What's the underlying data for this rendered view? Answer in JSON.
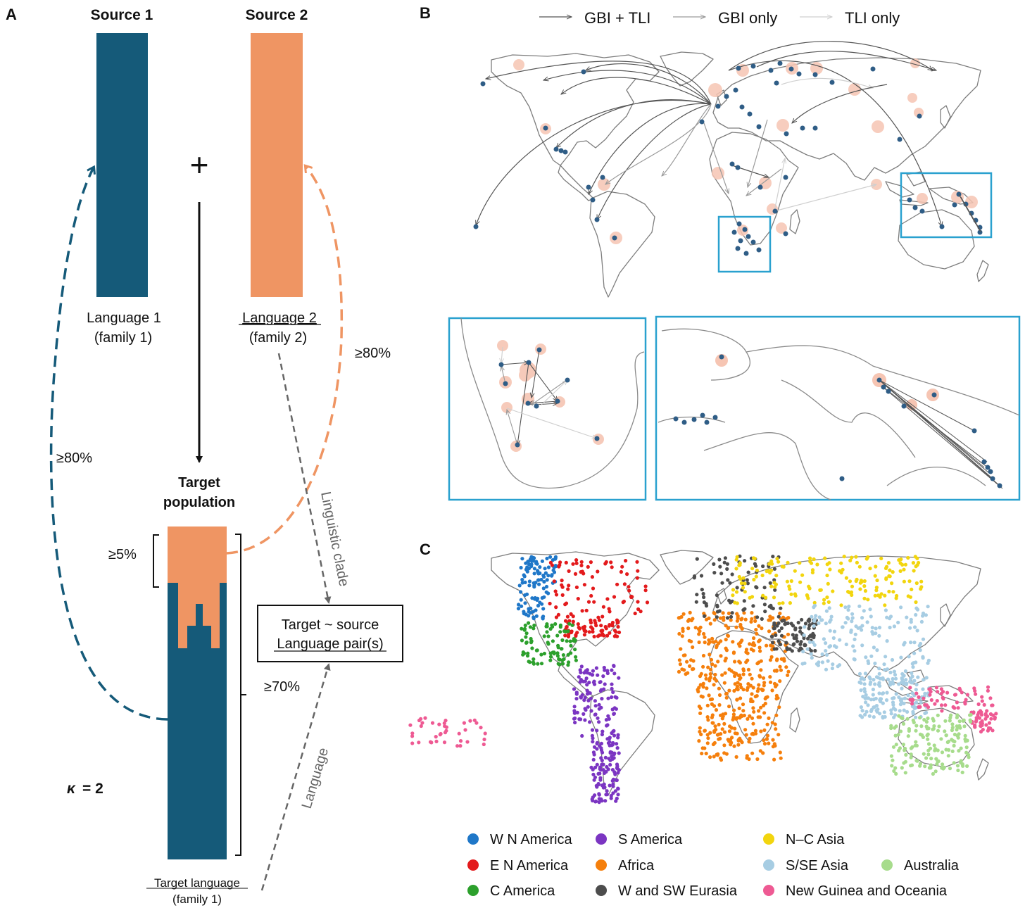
{
  "colors": {
    "source1": "#155a79",
    "source2": "#ef9563",
    "inset_box": "#2aa1cf",
    "arrow_gbi_tli": "#555555",
    "arrow_gbi_only": "#9a9a9a",
    "arrow_tli_only": "#cfcfcf",
    "node": "#2f5d86",
    "node_halo": "#f6c5b3"
  },
  "panel_a": {
    "label": "A",
    "source1_title": "Source 1",
    "source2_title": "Source 2",
    "plus_sign": "+",
    "language1": "Language 1",
    "family1": "(family 1)",
    "language2": "Language 2",
    "family2": "(family 2)",
    "pct_left": "≥80%",
    "pct_right": "≥80%",
    "target_title_line1": "Target",
    "target_title_line2": "population",
    "pct_5": "≥5%",
    "pct_70": "≥70%",
    "box_line1": "Target ~ source",
    "box_line2": "Language pair(s)",
    "clade_label": "Linguistic clade",
    "language_label": "Language",
    "kappa": "κ",
    "kappa_value": "= 2",
    "target_language": "Target language",
    "target_family": "(family 1)"
  },
  "panel_b": {
    "label": "B",
    "legend": [
      {
        "label": "GBI + TLI",
        "color": "#555555"
      },
      {
        "label": "GBI only",
        "color": "#9a9a9a"
      },
      {
        "label": "TLI only",
        "color": "#cfcfcf"
      }
    ]
  },
  "panel_c": {
    "label": "C",
    "legend": [
      {
        "label": "W N America",
        "color": "#1f77c8"
      },
      {
        "label": "E N America",
        "color": "#e31a1c"
      },
      {
        "label": "C America",
        "color": "#2ca02c"
      },
      {
        "label": "S America",
        "color": "#7b35c2"
      },
      {
        "label": "Africa",
        "color": "#f57f0c"
      },
      {
        "label": "W and SW Eurasia",
        "color": "#4d4d4d"
      },
      {
        "label": "N–C Asia",
        "color": "#f2d50e"
      },
      {
        "label": "S/SE Asia",
        "color": "#a7cde3"
      },
      {
        "label": "New Guinea and Oceania",
        "color": "#ee5a93"
      },
      {
        "label": "Australia",
        "color": "#a7dc8c"
      }
    ]
  }
}
